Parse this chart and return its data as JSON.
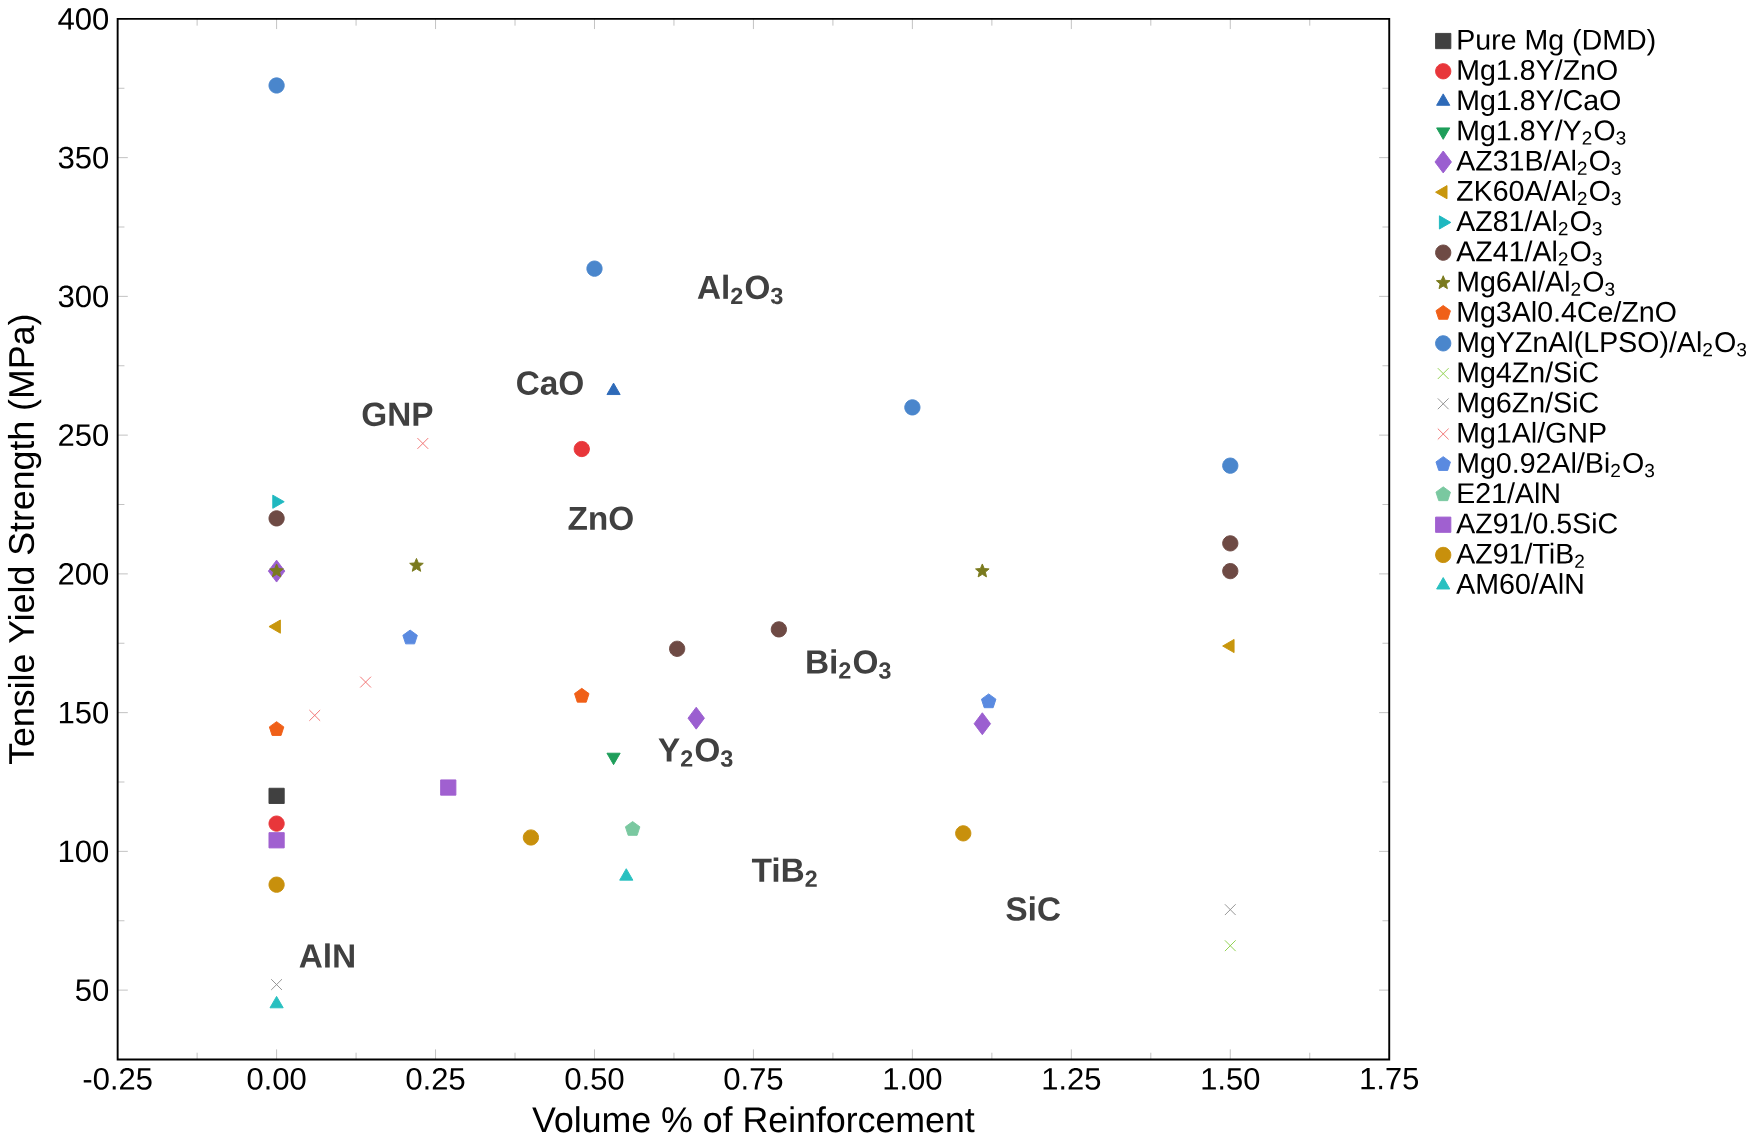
{
  "chart_data": {
    "type": "scatter",
    "xlabel": "Volume % of Reinforcement",
    "ylabel": "Tensile Yield Strength (MPa)",
    "xlim": [
      -0.25,
      1.75
    ],
    "ylim": [
      25,
      400
    ],
    "xticks": [
      -0.25,
      {
        "value": 0,
        "label": "0.00"
      },
      0.25,
      {
        "value": 0.5,
        "label": "0.50"
      },
      0.75,
      {
        "value": 1,
        "label": "1.00"
      },
      1.25,
      {
        "value": 1.5,
        "label": "1.50"
      },
      1.75
    ],
    "yticks": [
      50,
      100,
      150,
      200,
      250,
      300,
      350,
      400
    ],
    "legend": "right",
    "series": [
      {
        "name": "Pure Mg (DMD)",
        "color": "#404040",
        "marker": "square",
        "x": [
          0
        ],
        "values": [
          120
        ]
      },
      {
        "name": "Mg1.8Y/ZnO",
        "color": "#e8363a",
        "marker": "circle",
        "x": [
          0,
          0.48
        ],
        "values": [
          110,
          245
        ]
      },
      {
        "name": "Mg1.8Y/CaO",
        "color": "#2e6ab8",
        "marker": "triangle",
        "x": [
          0.53
        ],
        "values": [
          266
        ]
      },
      {
        "name": "Mg1.8Y/Y$_{2}$O$_{3}$",
        "color": "#1e9e5a",
        "marker": "triangle-down",
        "x": [
          0.53
        ],
        "values": [
          134
        ]
      },
      {
        "name": "AZ31B/Al$_{2}$O$_{3}$",
        "color": "#9b5fd0",
        "marker": "diamond",
        "x": [
          0,
          0.66,
          1.11
        ],
        "values": [
          201,
          148,
          146
        ]
      },
      {
        "name": "ZK60A/Al$_{2}$O$_{3}$",
        "color": "#c8960c",
        "marker": "triangle-left",
        "x": [
          0,
          1.5
        ],
        "values": [
          181,
          174
        ]
      },
      {
        "name": "AZ81/Al$_{2}$O$_{3}$",
        "color": "#1fb8c0",
        "marker": "triangle-right",
        "x": [
          0
        ],
        "values": [
          226
        ]
      },
      {
        "name": "AZ41/Al$_{2}$O$_{3}$",
        "color": "#6e4a44",
        "marker": "circle",
        "x": [
          0,
          0.63,
          0.79,
          1.5,
          1.5
        ],
        "values": [
          220,
          173,
          180,
          211,
          201
        ]
      },
      {
        "name": "Mg6Al/Al$_{2}$O$_{3}$",
        "color": "#7a7a1e",
        "marker": "star",
        "x": [
          0,
          0.22,
          1.11
        ],
        "values": [
          201,
          203,
          201
        ]
      },
      {
        "name": "Mg3Al0.4Ce/ZnO",
        "color": "#f06018",
        "x": [
          0,
          0.48
        ],
        "values": [
          144,
          156
        ]
      },
      {
        "name": "MgYZnAl(LPSO)/Al$_{2}$O$_{3}$",
        "color": "#4a86cc",
        "marker": "circle",
        "x": [
          0,
          0.5,
          1.0,
          1.5
        ],
        "values": [
          376,
          310,
          260,
          239
        ]
      },
      {
        "name": "Mg4Zn/SiC",
        "color": "#8cd04a",
        "marker": "cross",
        "x": [
          1.5
        ],
        "values": [
          66
        ]
      },
      {
        "name": "Mg6Zn/SiC",
        "color": "#909090",
        "marker": "cross",
        "x": [
          0,
          1.5
        ],
        "values": [
          52,
          79
        ]
      },
      {
        "name": "Mg1Al/GNP",
        "color": "#f07070",
        "marker": "cross",
        "x": [
          0.06,
          0.14,
          0.23
        ],
        "values": [
          149,
          161,
          247
        ]
      },
      {
        "name": "Mg0.92Al/Bi$_{2}$O$_{3}$",
        "color": "#5a8ae0",
        "x": [
          0.21,
          1.12
        ],
        "values": [
          177,
          154
        ]
      },
      {
        "name": "E21/AlN",
        "color": "#7ac8a0",
        "x": [
          0.56
        ],
        "values": [
          108
        ]
      },
      {
        "name": "AZ91/0.5SiC",
        "color": "#a060d0",
        "marker": "square",
        "x": [
          0,
          0.27
        ],
        "values": [
          104,
          123
        ]
      },
      {
        "name": "AZ91/TiB$_{2}$",
        "color": "#c8900c",
        "marker": "circle",
        "x": [
          0,
          0.4,
          1.08
        ],
        "values": [
          88,
          105,
          106.5
        ]
      },
      {
        "name": "AM60/AlN",
        "color": "#28c0c0",
        "marker": "triangle",
        "x": [
          0,
          0.55
        ],
        "values": [
          45,
          91
        ]
      }
    ],
    "annotations": [
      "Al$_{2}$O$_{3}$",
      "CaO",
      "GNP",
      "ZnO",
      "Bi$_{2}$O$_{3}$",
      "Y$_{2}$O$_{3}$",
      "TiB$_{2}$",
      "SiC",
      "AlN"
    ]
  }
}
